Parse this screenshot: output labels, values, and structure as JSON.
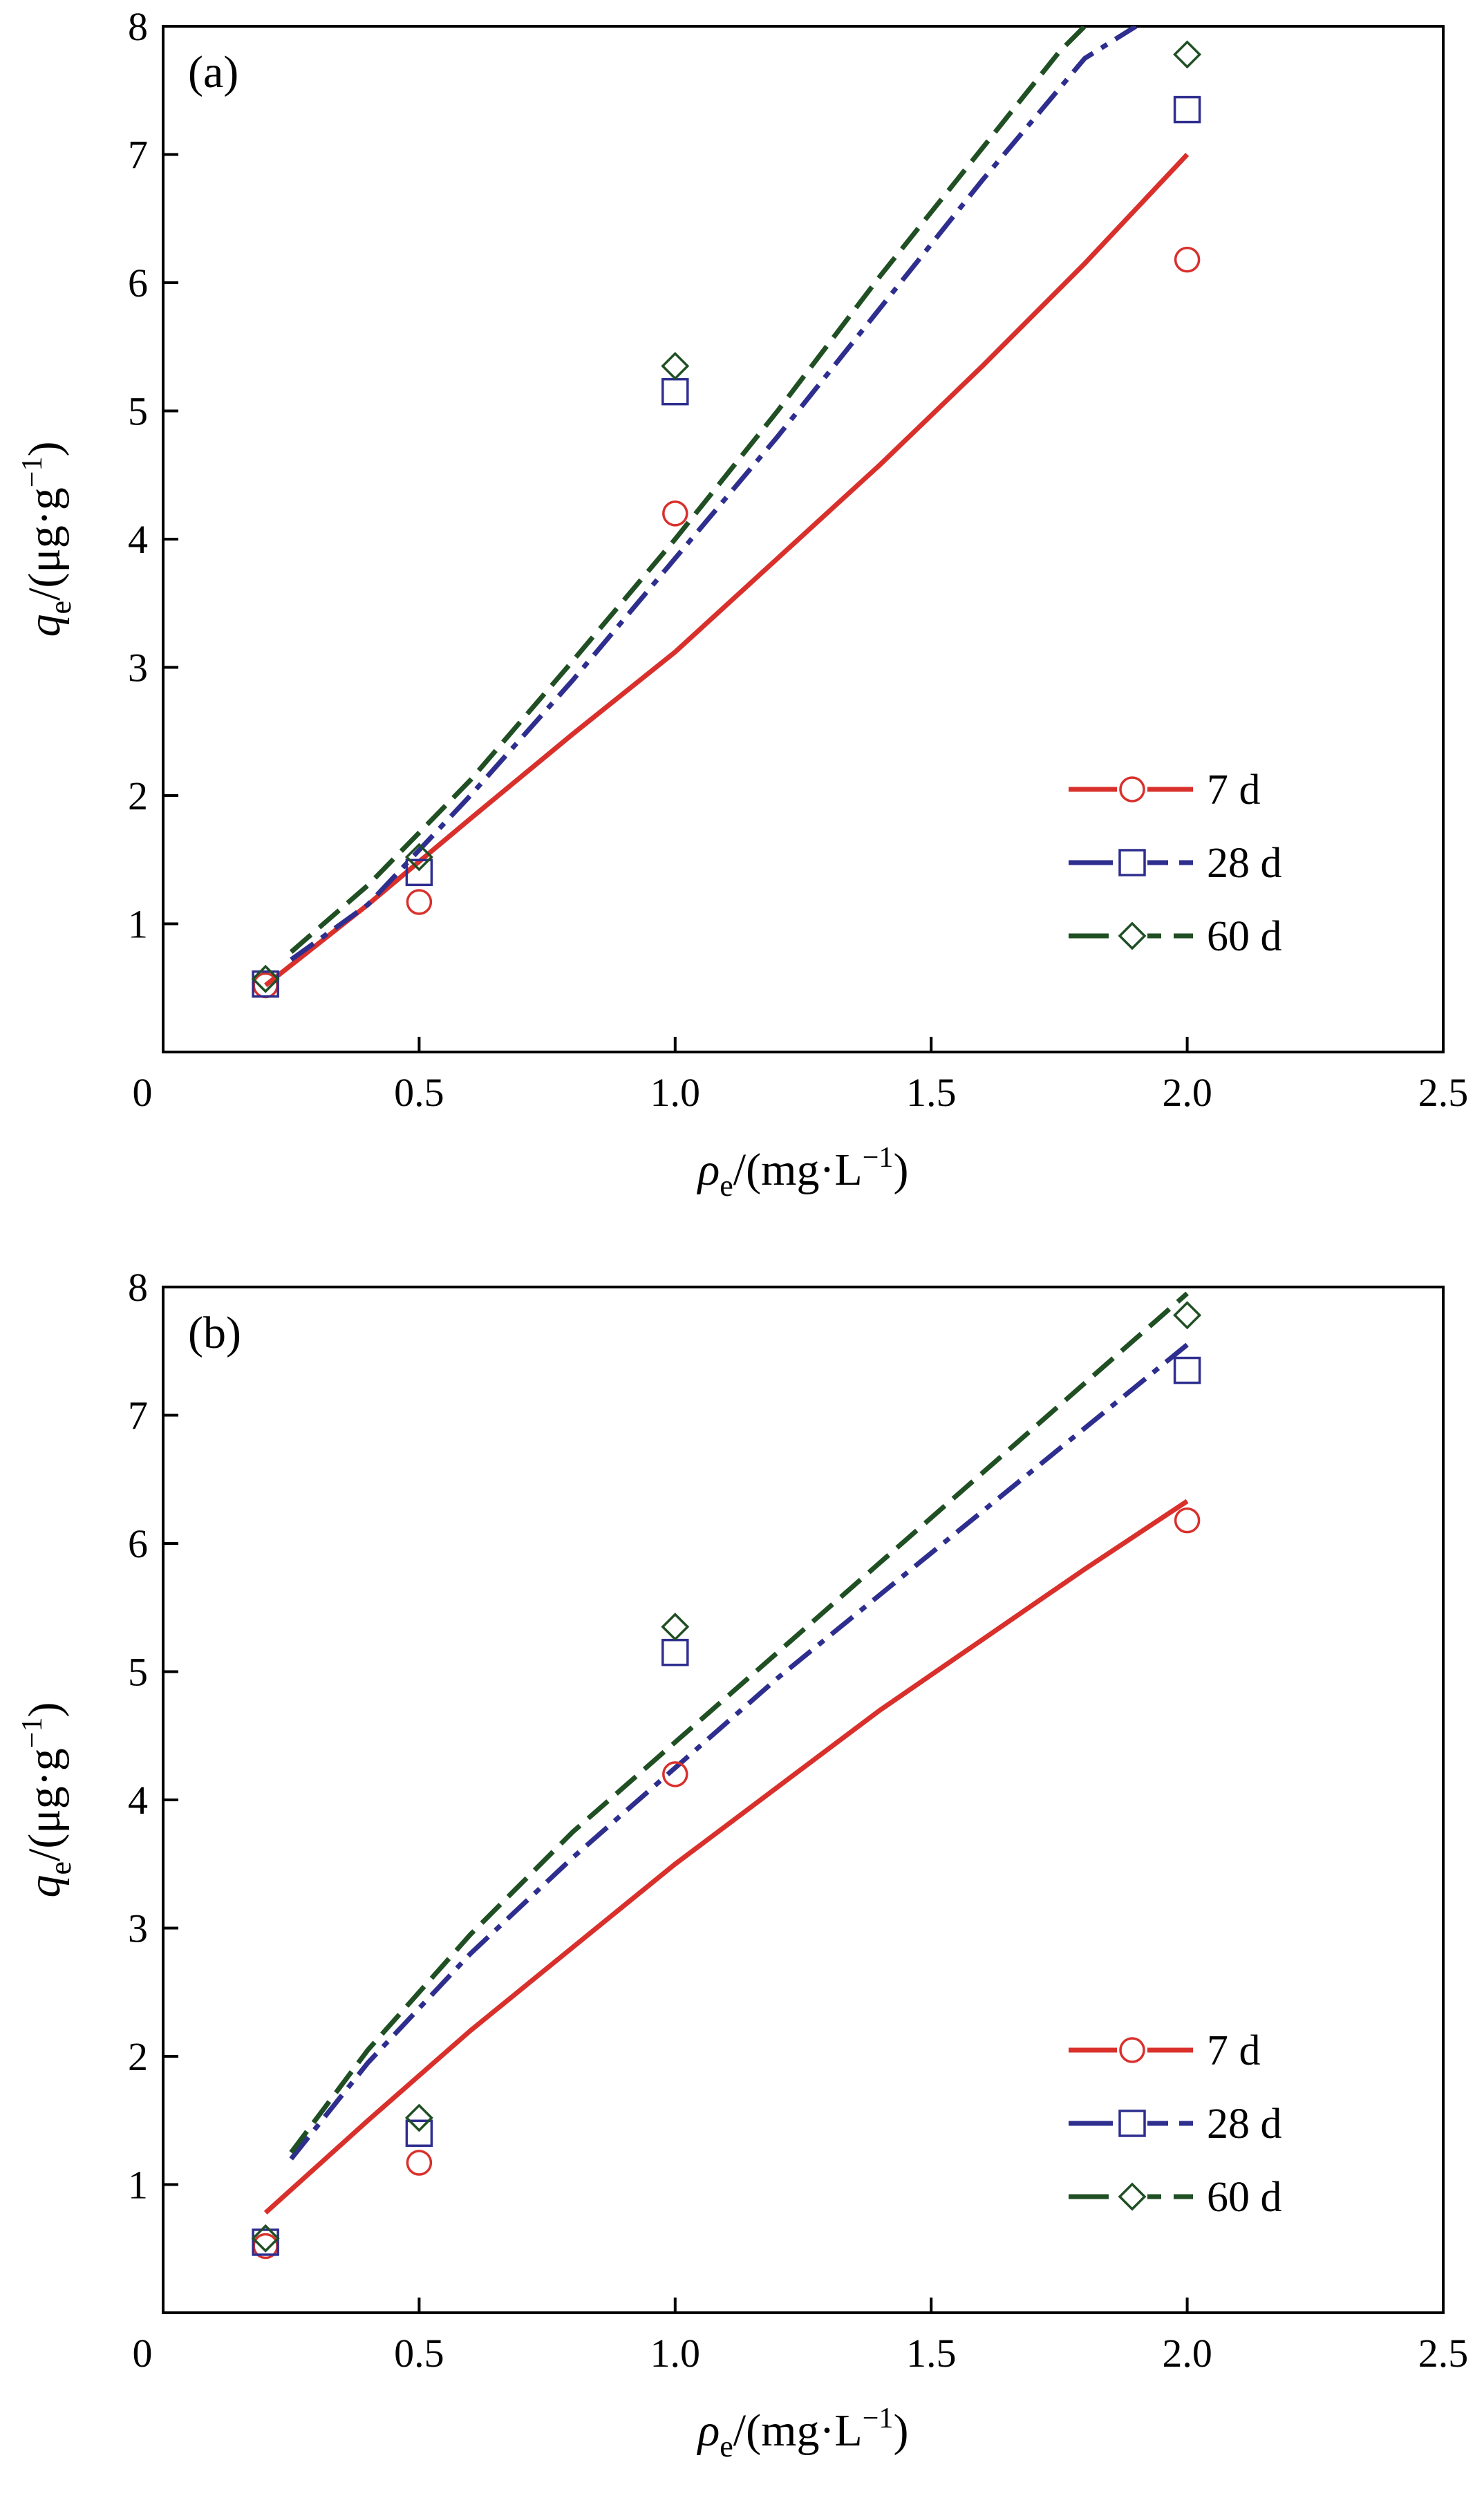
{
  "colors": {
    "7 d": "#d9302c",
    "28 d": "#2e2e8f",
    "60 d": "#1f4f23"
  },
  "chart_data": [
    {
      "type": "scatter",
      "panel_label": "(a)",
      "xlabel_var": "ρ",
      "xlabel_sub": "e",
      "xlabel_rest": "/(mg·L",
      "xlabel_sup": "−1",
      "xlabel_close": ")",
      "ylabel_var": "q",
      "ylabel_sub": "e",
      "ylabel_rest": "/(μg·g",
      "ylabel_sup": "−1",
      "ylabel_close": ")",
      "xlim": [
        0,
        2.5
      ],
      "ylim": [
        0,
        8
      ],
      "xticks": [
        "0",
        "0.5",
        "1.0",
        "1.5",
        "2.0",
        "2.5"
      ],
      "xtick_values": [
        0,
        0.5,
        1.0,
        1.5,
        2.0,
        2.5
      ],
      "yticks": [
        "0",
        "1",
        "2",
        "3",
        "4",
        "5",
        "6",
        "7",
        "8"
      ],
      "ytick_values": [
        0,
        1,
        2,
        3,
        4,
        5,
        6,
        7,
        8
      ],
      "legend_position": "bottom-right",
      "series": [
        {
          "name": "7 d",
          "marker": "circle",
          "line": "solid",
          "points": [
            [
              0.2,
              0.52
            ],
            [
              0.5,
              1.17
            ],
            [
              1.0,
              4.2
            ],
            [
              2.0,
              6.18
            ]
          ],
          "fit": [
            [
              0.2,
              0.52
            ],
            [
              0.4,
              1.15
            ],
            [
              0.6,
              1.82
            ],
            [
              0.8,
              2.48
            ],
            [
              1.0,
              3.12
            ],
            [
              1.2,
              3.85
            ],
            [
              1.4,
              4.58
            ],
            [
              1.6,
              5.35
            ],
            [
              1.8,
              6.15
            ],
            [
              2.0,
              7.0
            ]
          ]
        },
        {
          "name": "28 d",
          "marker": "square",
          "line": "dash-dot",
          "points": [
            [
              0.2,
              0.53
            ],
            [
              0.5,
              1.4
            ],
            [
              1.0,
              5.15
            ],
            [
              2.0,
              7.35
            ]
          ],
          "fit": [
            [
              0.25,
              0.72
            ],
            [
              0.4,
              1.15
            ],
            [
              0.6,
              2.0
            ],
            [
              0.8,
              2.9
            ],
            [
              1.0,
              3.85
            ],
            [
              1.2,
              4.8
            ],
            [
              1.4,
              5.8
            ],
            [
              1.6,
              6.8
            ],
            [
              1.8,
              7.75
            ],
            [
              1.9,
              8.0
            ]
          ]
        },
        {
          "name": "60 d",
          "marker": "diamond",
          "line": "dashed",
          "points": [
            [
              0.2,
              0.57
            ],
            [
              0.5,
              1.52
            ],
            [
              1.0,
              5.35
            ],
            [
              2.0,
              7.78
            ]
          ],
          "fit": [
            [
              0.25,
              0.78
            ],
            [
              0.4,
              1.3
            ],
            [
              0.6,
              2.12
            ],
            [
              0.8,
              3.05
            ],
            [
              1.0,
              4.0
            ],
            [
              1.2,
              5.0
            ],
            [
              1.4,
              6.05
            ],
            [
              1.6,
              7.05
            ],
            [
              1.75,
              7.8
            ],
            [
              1.8,
              8.0
            ]
          ]
        }
      ]
    },
    {
      "type": "scatter",
      "panel_label": "(b)",
      "xlabel_var": "ρ",
      "xlabel_sub": "e",
      "xlabel_rest": "/(mg·L",
      "xlabel_sup": "−1",
      "xlabel_close": ")",
      "ylabel_var": "q",
      "ylabel_sub": "e",
      "ylabel_rest": "/(μg·g",
      "ylabel_sup": "−1",
      "ylabel_close": ")",
      "xlim": [
        0,
        2.5
      ],
      "ylim": [
        0,
        8
      ],
      "xticks": [
        "0",
        "0.5",
        "1.0",
        "1.5",
        "2.0",
        "2.5"
      ],
      "xtick_values": [
        0,
        0.5,
        1.0,
        1.5,
        2.0,
        2.5
      ],
      "yticks": [
        "0",
        "1",
        "2",
        "3",
        "4",
        "5",
        "6",
        "7",
        "8"
      ],
      "ytick_values": [
        0,
        1,
        2,
        3,
        4,
        5,
        6,
        7,
        8
      ],
      "legend_position": "bottom-right",
      "series": [
        {
          "name": "7 d",
          "marker": "circle",
          "line": "solid",
          "points": [
            [
              0.2,
              0.52
            ],
            [
              0.5,
              1.17
            ],
            [
              1.0,
              4.2
            ],
            [
              2.0,
              6.18
            ]
          ],
          "fit": [
            [
              0.2,
              0.78
            ],
            [
              0.4,
              1.5
            ],
            [
              0.6,
              2.2
            ],
            [
              0.8,
              2.85
            ],
            [
              1.0,
              3.5
            ],
            [
              1.2,
              4.1
            ],
            [
              1.4,
              4.7
            ],
            [
              1.6,
              5.25
            ],
            [
              1.8,
              5.8
            ],
            [
              2.0,
              6.33
            ]
          ]
        },
        {
          "name": "28 d",
          "marker": "square",
          "line": "dash-dot",
          "points": [
            [
              0.2,
              0.55
            ],
            [
              0.5,
              1.4
            ],
            [
              1.0,
              5.15
            ],
            [
              2.0,
              7.35
            ]
          ],
          "fit": [
            [
              0.25,
              1.2
            ],
            [
              0.4,
              1.95
            ],
            [
              0.6,
              2.8
            ],
            [
              0.8,
              3.55
            ],
            [
              1.0,
              4.25
            ],
            [
              1.2,
              4.95
            ],
            [
              1.4,
              5.6
            ],
            [
              1.6,
              6.25
            ],
            [
              1.8,
              6.9
            ],
            [
              2.0,
              7.55
            ]
          ]
        },
        {
          "name": "60 d",
          "marker": "diamond",
          "line": "dashed",
          "points": [
            [
              0.2,
              0.58
            ],
            [
              0.5,
              1.52
            ],
            [
              1.0,
              5.35
            ],
            [
              2.0,
              7.78
            ]
          ],
          "fit": [
            [
              0.25,
              1.25
            ],
            [
              0.4,
              2.05
            ],
            [
              0.6,
              2.95
            ],
            [
              0.8,
              3.75
            ],
            [
              1.0,
              4.45
            ],
            [
              1.2,
              5.15
            ],
            [
              1.4,
              5.85
            ],
            [
              1.6,
              6.55
            ],
            [
              1.8,
              7.25
            ],
            [
              2.0,
              7.95
            ]
          ]
        }
      ]
    }
  ]
}
